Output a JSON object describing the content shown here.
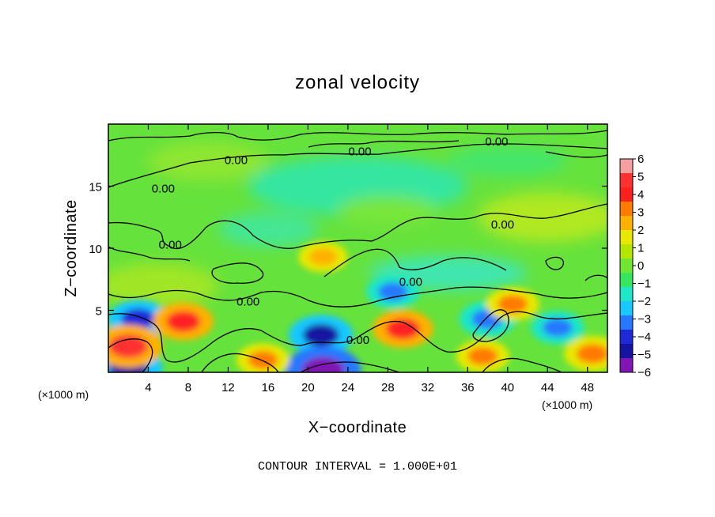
{
  "chart_data": {
    "type": "heatmap",
    "title": "zonal velocity",
    "xlabel": "X−coordinate",
    "ylabel": "Z−coordinate",
    "x_unit_left": "(×1000 m)",
    "x_unit_right": "(×1000 m)",
    "xlim": [
      0,
      50
    ],
    "ylim": [
      0,
      20
    ],
    "x_ticks": [
      4,
      8,
      12,
      16,
      20,
      24,
      28,
      32,
      36,
      40,
      44,
      48
    ],
    "y_ticks": [
      5,
      10,
      15
    ],
    "colorbar": {
      "ticks": [
        "6",
        "5",
        "4",
        "3",
        "2",
        "1",
        "0",
        "−1",
        "−2",
        "−3",
        "−4",
        "−5",
        "−6"
      ],
      "range": [
        -6,
        6
      ],
      "colors": [
        "#f4a0a0",
        "#ff3030",
        "#ff2020",
        "#ff7a00",
        "#ffb000",
        "#e8e800",
        "#b4e600",
        "#6ee632",
        "#34e660",
        "#1ee6c8",
        "#18c8ff",
        "#2878ff",
        "#1e2ad8",
        "#1414a0",
        "#8014b4"
      ]
    },
    "contour_labels": [
      {
        "text": "0.00",
        "x": 5.5,
        "z": 14.8
      },
      {
        "text": "0.00",
        "x": 12.8,
        "z": 17.1
      },
      {
        "text": "0.00",
        "x": 25.2,
        "z": 17.8
      },
      {
        "text": "0.00",
        "x": 38.9,
        "z": 18.6
      },
      {
        "text": "0.00",
        "x": 6.2,
        "z": 10.3
      },
      {
        "text": "0.00",
        "x": 39.5,
        "z": 11.9
      },
      {
        "text": "0.00",
        "x": 30.3,
        "z": 7.3
      },
      {
        "text": "0.00",
        "x": 14.0,
        "z": 5.7
      },
      {
        "text": "0.00",
        "x": 25.0,
        "z": 2.6
      }
    ],
    "features": [
      {
        "sign": "neg",
        "value": -4.0,
        "x": 3.0,
        "z": 4.3
      },
      {
        "sign": "neg",
        "value": -4.5,
        "x": 21.3,
        "z": 3.0
      },
      {
        "sign": "neg",
        "value": -6.0,
        "x": 21.5,
        "z": 0.2
      },
      {
        "sign": "neg",
        "value": -3.5,
        "x": 38.0,
        "z": 4.3
      },
      {
        "sign": "neg",
        "value": -3.0,
        "x": 45.0,
        "z": 3.6
      },
      {
        "sign": "neg",
        "value": -5.0,
        "x": 2.0,
        "z": 0.3
      },
      {
        "sign": "neg",
        "value": -3.0,
        "x": 28.5,
        "z": 6.5
      },
      {
        "sign": "pos",
        "value": 5.0,
        "x": 2.0,
        "z": 2.1
      },
      {
        "sign": "pos",
        "value": 4.0,
        "x": 7.5,
        "z": 4.1
      },
      {
        "sign": "pos",
        "value": 3.0,
        "x": 15.5,
        "z": 1.0
      },
      {
        "sign": "pos",
        "value": 4.0,
        "x": 29.5,
        "z": 3.5
      },
      {
        "sign": "pos",
        "value": 3.0,
        "x": 37.5,
        "z": 1.3
      },
      {
        "sign": "pos",
        "value": 3.0,
        "x": 40.5,
        "z": 5.5
      },
      {
        "sign": "pos",
        "value": 2.5,
        "x": 21.5,
        "z": 9.3
      },
      {
        "sign": "pos",
        "value": 3.5,
        "x": 48.5,
        "z": 1.5
      }
    ]
  },
  "footer": {
    "interval": "CONTOUR INTERVAL = 1.000E+01"
  }
}
